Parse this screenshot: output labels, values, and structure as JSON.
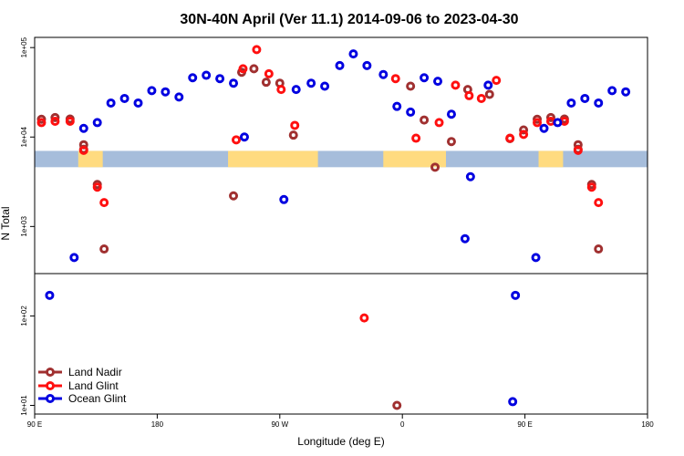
{
  "chart_data": {
    "type": "scatter",
    "title": "30N-40N April (Ver 11.1)   2014-09-06 to 2023-04-30",
    "xlabel": "Longitude (deg E)",
    "ylabel": "N Total",
    "y_scale": "log",
    "x_tick_labels": [
      "90 E",
      "180",
      "90 W",
      "0",
      "90 E",
      "180"
    ],
    "y_tick_labels": [
      "1e+01",
      "1e+02",
      "1e+03",
      "1e+04",
      "1e+05"
    ],
    "x_range_deg": [
      90,
      540
    ],
    "y_range": [
      8,
      130000
    ],
    "grid": false,
    "legend_position": "bottom-left",
    "colors": {
      "land_band": "#ffdb80",
      "ocean_band": "#a6bddb"
    },
    "series": [
      {
        "name": "Land Nadir",
        "color": "#a03030",
        "points": [
          {
            "lon": 95,
            "n": 15800
          },
          {
            "lon": 105,
            "n": 16500
          },
          {
            "lon": 116,
            "n": 15900
          },
          {
            "lon": 126,
            "n": 8200
          },
          {
            "lon": 126,
            "n": 7300
          },
          {
            "lon": 136,
            "n": 2950
          },
          {
            "lon": 141,
            "n": 560
          },
          {
            "lon": 236,
            "n": 2200
          },
          {
            "lon": 242,
            "n": 53000
          },
          {
            "lon": 251,
            "n": 58000
          },
          {
            "lon": 260,
            "n": 41000
          },
          {
            "lon": 270,
            "n": 40000
          },
          {
            "lon": 280,
            "n": 10500
          },
          {
            "lon": 356,
            "n": 10
          },
          {
            "lon": 366,
            "n": 37000
          },
          {
            "lon": 376,
            "n": 15500
          },
          {
            "lon": 384,
            "n": 4600
          },
          {
            "lon": 396,
            "n": 8900
          },
          {
            "lon": 408,
            "n": 34000
          },
          {
            "lon": 424,
            "n": 30000
          },
          {
            "lon": 439,
            "n": 9600
          },
          {
            "lon": 449,
            "n": 12000
          },
          {
            "lon": 459,
            "n": 15800
          },
          {
            "lon": 469,
            "n": 16500
          },
          {
            "lon": 479,
            "n": 15900
          },
          {
            "lon": 489,
            "n": 8200
          },
          {
            "lon": 489,
            "n": 7300
          },
          {
            "lon": 499,
            "n": 2950
          },
          {
            "lon": 504,
            "n": 560
          }
        ]
      },
      {
        "name": "Land Glint",
        "color": "#ff1010",
        "points": [
          {
            "lon": 95,
            "n": 14500
          },
          {
            "lon": 105,
            "n": 15000
          },
          {
            "lon": 116,
            "n": 15000
          },
          {
            "lon": 126,
            "n": 7100
          },
          {
            "lon": 136,
            "n": 2750
          },
          {
            "lon": 141,
            "n": 1850
          },
          {
            "lon": 238,
            "n": 9300
          },
          {
            "lon": 243,
            "n": 58000
          },
          {
            "lon": 253,
            "n": 95000
          },
          {
            "lon": 262,
            "n": 51000
          },
          {
            "lon": 271,
            "n": 34000
          },
          {
            "lon": 281,
            "n": 13500
          },
          {
            "lon": 332,
            "n": 95
          },
          {
            "lon": 355,
            "n": 45000
          },
          {
            "lon": 370,
            "n": 9700
          },
          {
            "lon": 387,
            "n": 14500
          },
          {
            "lon": 399,
            "n": 38000
          },
          {
            "lon": 409,
            "n": 29000
          },
          {
            "lon": 418,
            "n": 27000
          },
          {
            "lon": 429,
            "n": 43000
          },
          {
            "lon": 439,
            "n": 9700
          },
          {
            "lon": 449,
            "n": 10700
          },
          {
            "lon": 459,
            "n": 14500
          },
          {
            "lon": 469,
            "n": 15000
          },
          {
            "lon": 479,
            "n": 15000
          },
          {
            "lon": 489,
            "n": 7100
          },
          {
            "lon": 499,
            "n": 2750
          },
          {
            "lon": 504,
            "n": 1850
          }
        ]
      },
      {
        "name": "Ocean Glint",
        "color": "#0000e0",
        "points": [
          {
            "lon": 101,
            "n": 170
          },
          {
            "lon": 119,
            "n": 450
          },
          {
            "lon": 126,
            "n": 12500
          },
          {
            "lon": 136,
            "n": 14500
          },
          {
            "lon": 146,
            "n": 24000
          },
          {
            "lon": 156,
            "n": 27000
          },
          {
            "lon": 166,
            "n": 24000
          },
          {
            "lon": 176,
            "n": 33000
          },
          {
            "lon": 186,
            "n": 32000
          },
          {
            "lon": 196,
            "n": 28000
          },
          {
            "lon": 206,
            "n": 46000
          },
          {
            "lon": 216,
            "n": 49000
          },
          {
            "lon": 226,
            "n": 45000
          },
          {
            "lon": 236,
            "n": 40000
          },
          {
            "lon": 244,
            "n": 10000
          },
          {
            "lon": 273,
            "n": 2000
          },
          {
            "lon": 282,
            "n": 34000
          },
          {
            "lon": 293,
            "n": 40000
          },
          {
            "lon": 303,
            "n": 37000
          },
          {
            "lon": 314,
            "n": 63000
          },
          {
            "lon": 324,
            "n": 85000
          },
          {
            "lon": 334,
            "n": 63000
          },
          {
            "lon": 346,
            "n": 50000
          },
          {
            "lon": 356,
            "n": 22000
          },
          {
            "lon": 366,
            "n": 19000
          },
          {
            "lon": 376,
            "n": 46000
          },
          {
            "lon": 386,
            "n": 42000
          },
          {
            "lon": 396,
            "n": 18000
          },
          {
            "lon": 406,
            "n": 730
          },
          {
            "lon": 410,
            "n": 3600
          },
          {
            "lon": 423,
            "n": 38000
          },
          {
            "lon": 441,
            "n": 11
          },
          {
            "lon": 443,
            "n": 170
          },
          {
            "lon": 458,
            "n": 450
          },
          {
            "lon": 464,
            "n": 12500
          },
          {
            "lon": 474,
            "n": 14500
          },
          {
            "lon": 484,
            "n": 24000
          },
          {
            "lon": 494,
            "n": 27000
          },
          {
            "lon": 504,
            "n": 24000
          },
          {
            "lon": 514,
            "n": 33000
          },
          {
            "lon": 524,
            "n": 32000
          }
        ]
      }
    ]
  }
}
